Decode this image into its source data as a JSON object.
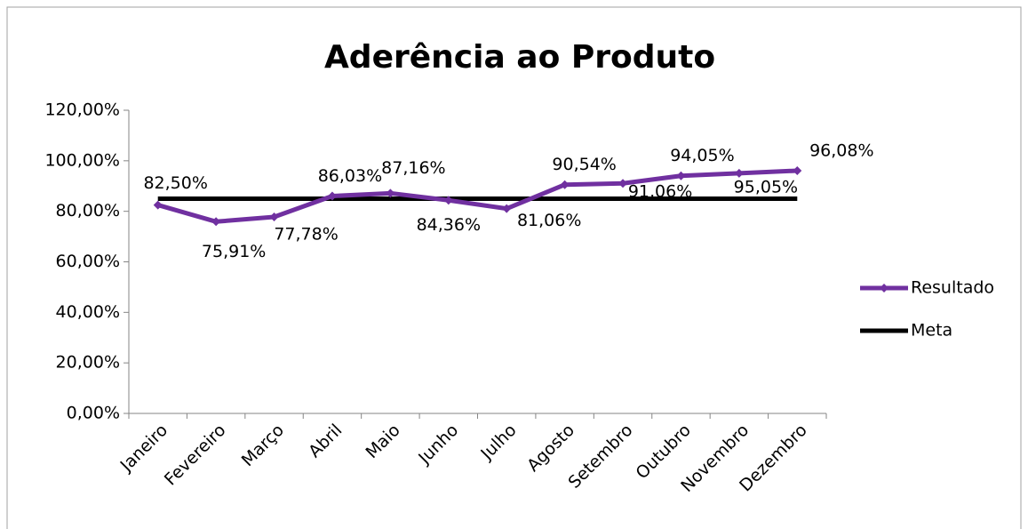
{
  "chart_data": {
    "type": "line",
    "title": "Aderência ao Produto",
    "categories": [
      "Janeiro",
      "Fevereiro",
      "Março",
      "Abril",
      "Maio",
      "Junho",
      "Julho",
      "Agosto",
      "Setembro",
      "Outubro",
      "Novembro",
      "Dezembro"
    ],
    "series": [
      {
        "name": "Resultado",
        "color": "#7030a0",
        "marker": "diamond",
        "values": [
          82.5,
          75.91,
          77.78,
          86.03,
          87.16,
          84.36,
          81.06,
          90.54,
          91.06,
          94.05,
          95.05,
          96.08
        ],
        "value_labels": [
          "82,50%",
          "75,91%",
          "77,78%",
          "86,03%",
          "87,16%",
          "84,36%",
          "81,06%",
          "90,54%",
          "91,06%",
          "94,05%",
          "95,05%",
          "96,08%"
        ]
      },
      {
        "name": "Meta",
        "color": "#000000",
        "values": [
          85,
          85,
          85,
          85,
          85,
          85,
          85,
          85,
          85,
          85,
          85,
          85
        ]
      }
    ],
    "ylim": [
      0,
      120
    ],
    "yticks": [
      {
        "value": 0,
        "label": "0,00%"
      },
      {
        "value": 20,
        "label": "20,00%"
      },
      {
        "value": 40,
        "label": "40,00%"
      },
      {
        "value": 60,
        "label": "60,00%"
      },
      {
        "value": 80,
        "label": "80,00%"
      },
      {
        "value": 100,
        "label": "100,00%"
      },
      {
        "value": 120,
        "label": "120,00%"
      }
    ],
    "legend": "right"
  }
}
